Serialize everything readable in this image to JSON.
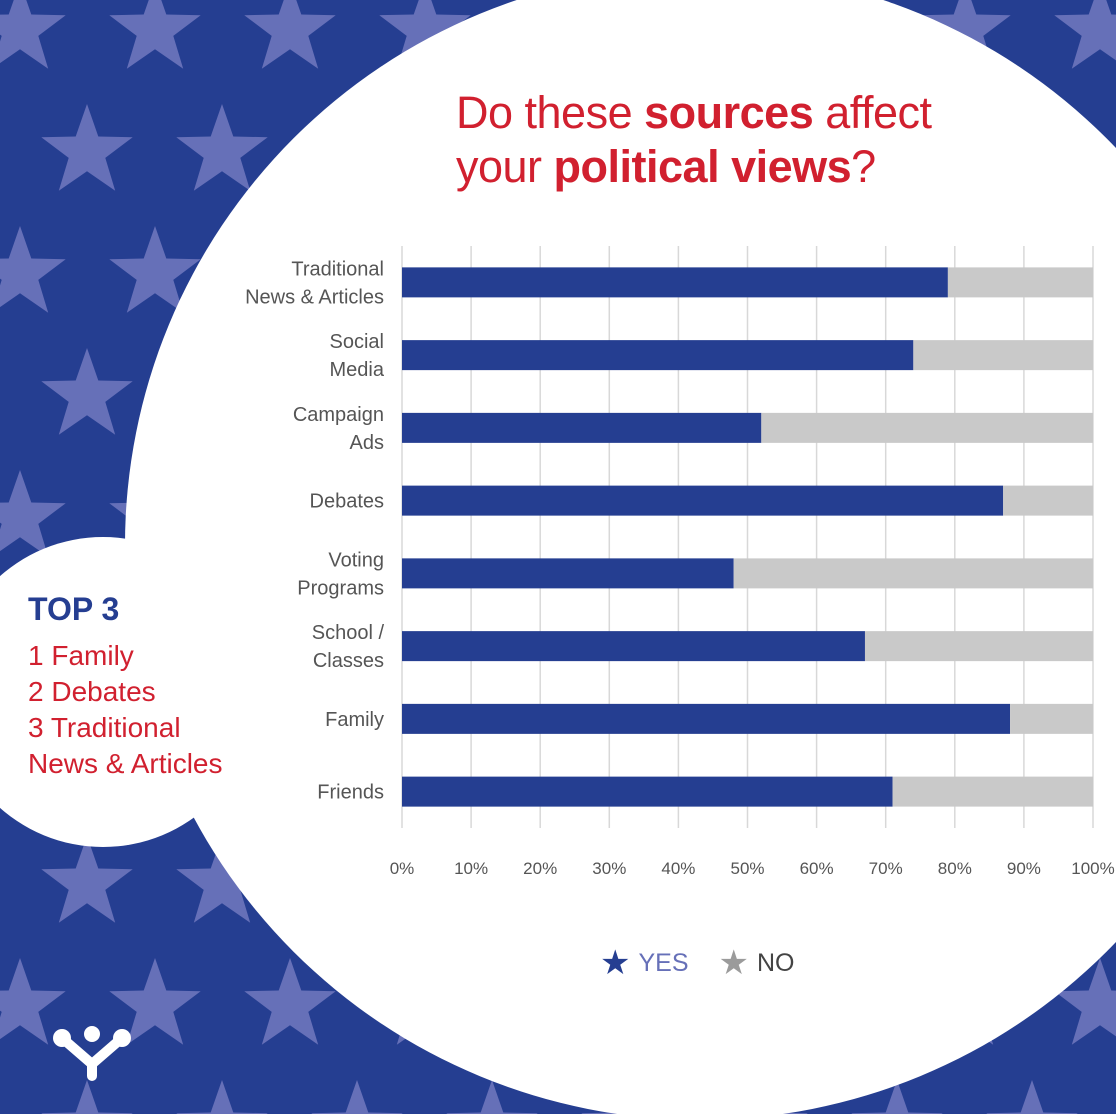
{
  "title": {
    "line1_pre": "Do these ",
    "line1_bold": "sources",
    "line1_post": " affect",
    "line2_pre": "your ",
    "line2_bold": "political views",
    "line2_post": "?"
  },
  "top3": {
    "heading": "TOP 3",
    "items": [
      "1 Family",
      "2 Debates",
      "3 Traditional",
      "News & Articles"
    ]
  },
  "legend": {
    "yes_label": "YES",
    "no_label": "NO",
    "yes_icon": "star-icon",
    "no_icon": "star-icon"
  },
  "colors": {
    "background_blue": "#253e91",
    "star_light": "#6670b8",
    "yes_bar": "#253e91",
    "no_bar": "#c9c9c9",
    "title_red": "#d1202f",
    "legend_yes_text": "#6670b8",
    "legend_no_text": "#444444"
  },
  "chart_data": {
    "type": "bar",
    "orientation": "horizontal",
    "stacked": true,
    "categories": [
      [
        "Traditional",
        "News & Articles"
      ],
      [
        "Social",
        "Media"
      ],
      [
        "Campaign",
        "Ads"
      ],
      [
        "Debates"
      ],
      [
        "Voting",
        "Programs"
      ],
      [
        "School /",
        "Classes"
      ],
      [
        "Family"
      ],
      [
        "Friends"
      ]
    ],
    "series": [
      {
        "name": "YES",
        "values": [
          79,
          74,
          52,
          87,
          48,
          67,
          88,
          71
        ]
      },
      {
        "name": "NO",
        "values": [
          21,
          26,
          48,
          13,
          52,
          33,
          12,
          29
        ]
      }
    ],
    "x_ticks": [
      "0%",
      "10%",
      "20%",
      "30%",
      "40%",
      "50%",
      "60%",
      "70%",
      "80%",
      "90%",
      "100%"
    ],
    "xlim": [
      0,
      100
    ],
    "grid": true,
    "legend_position": "bottom"
  }
}
